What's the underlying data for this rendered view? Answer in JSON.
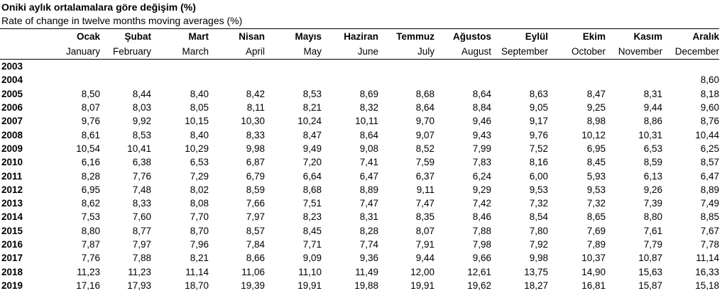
{
  "header": {
    "title": "Oniki aylık ortalamalara göre değişim (%)",
    "subtitle": "Rate of change in twelve months moving averages (%)"
  },
  "table": {
    "columns": [
      {
        "tr": "Ocak",
        "en": "January"
      },
      {
        "tr": "Şubat",
        "en": "February"
      },
      {
        "tr": "Mart",
        "en": "March"
      },
      {
        "tr": "Nisan",
        "en": "April"
      },
      {
        "tr": "Mayıs",
        "en": "May"
      },
      {
        "tr": "Haziran",
        "en": "June"
      },
      {
        "tr": "Temmuz",
        "en": "July"
      },
      {
        "tr": "Ağustos",
        "en": "August"
      },
      {
        "tr": "Eylül",
        "en": "September"
      },
      {
        "tr": "Ekim",
        "en": "October"
      },
      {
        "tr": "Kasım",
        "en": "November"
      },
      {
        "tr": "Aralık",
        "en": "December"
      }
    ],
    "rows": [
      {
        "year": "2003",
        "values": [
          null,
          null,
          null,
          null,
          null,
          null,
          null,
          null,
          null,
          null,
          null,
          null
        ]
      },
      {
        "year": "2004",
        "values": [
          null,
          null,
          null,
          null,
          null,
          null,
          null,
          null,
          null,
          null,
          null,
          "8,60"
        ]
      },
      {
        "year": "2005",
        "values": [
          "8,50",
          "8,44",
          "8,40",
          "8,42",
          "8,53",
          "8,69",
          "8,68",
          "8,64",
          "8,63",
          "8,47",
          "8,31",
          "8,18"
        ]
      },
      {
        "year": "2006",
        "values": [
          "8,07",
          "8,03",
          "8,05",
          "8,11",
          "8,21",
          "8,32",
          "8,64",
          "8,84",
          "9,05",
          "9,25",
          "9,44",
          "9,60"
        ]
      },
      {
        "year": "2007",
        "values": [
          "9,76",
          "9,92",
          "10,15",
          "10,30",
          "10,24",
          "10,11",
          "9,70",
          "9,46",
          "9,17",
          "8,98",
          "8,86",
          "8,76"
        ]
      },
      {
        "year": "2008",
        "values": [
          "8,61",
          "8,53",
          "8,40",
          "8,33",
          "8,47",
          "8,64",
          "9,07",
          "9,43",
          "9,76",
          "10,12",
          "10,31",
          "10,44"
        ]
      },
      {
        "year": "2009",
        "values": [
          "10,54",
          "10,41",
          "10,29",
          "9,98",
          "9,49",
          "9,08",
          "8,52",
          "7,99",
          "7,52",
          "6,95",
          "6,53",
          "6,25"
        ]
      },
      {
        "year": "2010",
        "values": [
          "6,16",
          "6,38",
          "6,53",
          "6,87",
          "7,20",
          "7,41",
          "7,59",
          "7,83",
          "8,16",
          "8,45",
          "8,59",
          "8,57"
        ]
      },
      {
        "year": "2011",
        "values": [
          "8,28",
          "7,76",
          "7,29",
          "6,79",
          "6,64",
          "6,47",
          "6,37",
          "6,24",
          "6,00",
          "5,93",
          "6,13",
          "6,47"
        ]
      },
      {
        "year": "2012",
        "values": [
          "6,95",
          "7,48",
          "8,02",
          "8,59",
          "8,68",
          "8,89",
          "9,11",
          "9,29",
          "9,53",
          "9,53",
          "9,26",
          "8,89"
        ]
      },
      {
        "year": "2013",
        "values": [
          "8,62",
          "8,33",
          "8,08",
          "7,66",
          "7,51",
          "7,47",
          "7,47",
          "7,42",
          "7,32",
          "7,32",
          "7,39",
          "7,49"
        ]
      },
      {
        "year": "2014",
        "values": [
          "7,53",
          "7,60",
          "7,70",
          "7,97",
          "8,23",
          "8,31",
          "8,35",
          "8,46",
          "8,54",
          "8,65",
          "8,80",
          "8,85"
        ]
      },
      {
        "year": "2015",
        "values": [
          "8,80",
          "8,77",
          "8,70",
          "8,57",
          "8,45",
          "8,28",
          "8,07",
          "7,88",
          "7,80",
          "7,69",
          "7,61",
          "7,67"
        ]
      },
      {
        "year": "2016",
        "values": [
          "7,87",
          "7,97",
          "7,96",
          "7,84",
          "7,71",
          "7,74",
          "7,91",
          "7,98",
          "7,92",
          "7,89",
          "7,79",
          "7,78"
        ]
      },
      {
        "year": "2017",
        "values": [
          "7,76",
          "7,88",
          "8,21",
          "8,66",
          "9,09",
          "9,36",
          "9,44",
          "9,66",
          "9,98",
          "10,37",
          "10,87",
          "11,14"
        ]
      },
      {
        "year": "2018",
        "values": [
          "11,23",
          "11,23",
          "11,14",
          "11,06",
          "11,10",
          "11,49",
          "12,00",
          "12,61",
          "13,75",
          "14,90",
          "15,63",
          "16,33"
        ]
      },
      {
        "year": "2019",
        "values": [
          "17,16",
          "17,93",
          "18,70",
          "19,39",
          "19,91",
          "19,88",
          "19,91",
          "19,62",
          "18,27",
          "16,81",
          "15,87",
          "15,18"
        ]
      }
    ]
  }
}
